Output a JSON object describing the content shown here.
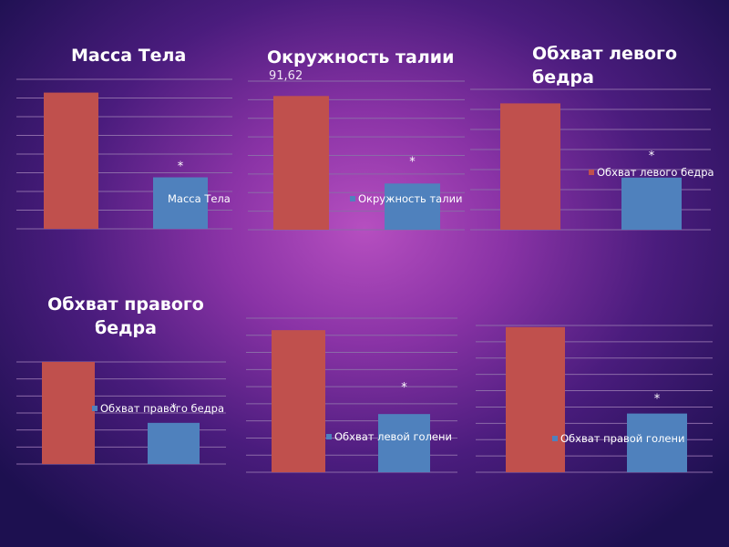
{
  "colors": {
    "red": "#c0504d",
    "blue": "#4f81bd",
    "grid": "#8b6aa8",
    "text": "#ffffff"
  },
  "chart_data": [
    {
      "type": "bar",
      "title": "Масса Тела",
      "subtitle": "",
      "legend": "Масса Тела",
      "legend_placement": "inside",
      "categories": [
        "",
        ""
      ],
      "values": [
        8.2,
        3.1
      ],
      "marks": [
        "",
        "*"
      ],
      "ylim": [
        0,
        9
      ],
      "gridlines": 8
    },
    {
      "type": "bar",
      "title": "Окружность талии",
      "subtitle": "91,62",
      "legend": "Окружность талии",
      "legend_placement": "inside",
      "categories": [
        "",
        ""
      ],
      "values": [
        8.1,
        2.8
      ],
      "marks": [
        "",
        "*"
      ],
      "ylim": [
        0,
        9
      ],
      "gridlines": 8
    },
    {
      "type": "bar",
      "title": "Обхват левого бедра",
      "subtitle": "",
      "legend": "Обхват левого бедра",
      "legend_placement": "inside",
      "categories": [
        "",
        ""
      ],
      "values": [
        6.3,
        2.6
      ],
      "marks": [
        "",
        "*"
      ],
      "ylim": [
        0,
        7
      ],
      "gridlines": 7
    },
    {
      "type": "bar",
      "title": "Обхват правого бедра",
      "subtitle": "",
      "legend": "Обхват правого бедра",
      "legend_placement": "inside",
      "categories": [
        "",
        ""
      ],
      "values": [
        6.2,
        2.5
      ],
      "marks": [
        "",
        "*"
      ],
      "ylim": [
        0,
        6.2
      ],
      "gridlines": 6
    },
    {
      "type": "bar",
      "title": "",
      "subtitle": "",
      "legend": "Обхват левой голени",
      "legend_placement": "inside",
      "categories": [
        "",
        ""
      ],
      "values": [
        8.3,
        3.4
      ],
      "marks": [
        "",
        "*"
      ],
      "ylim": [
        0,
        9
      ],
      "gridlines": 9
    },
    {
      "type": "bar",
      "title": "",
      "subtitle": "",
      "legend": "Обхват правой голени",
      "legend_placement": "inside",
      "categories": [
        "",
        ""
      ],
      "values": [
        8.9,
        3.6
      ],
      "marks": [
        "",
        "*"
      ],
      "ylim": [
        0,
        9
      ],
      "gridlines": 9
    }
  ]
}
